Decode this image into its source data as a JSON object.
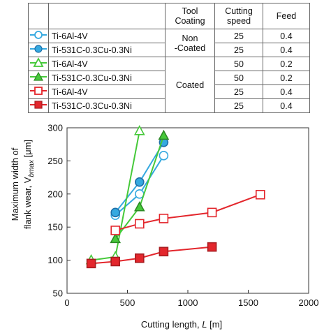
{
  "table": {
    "headers": {
      "coating_line1": "Tool",
      "coating_line2": "Coating",
      "speed_line1": "Cutting",
      "speed_line2": "speed",
      "feed": "Feed"
    },
    "rows": [
      {
        "name": "Ti-6Al-4V",
        "speed": "25",
        "feed": "0.4"
      },
      {
        "name": "Ti-531C-0.3Cu-0.3Ni",
        "speed": "25",
        "feed": "0.4"
      },
      {
        "name": "Ti-6Al-4V",
        "speed": "50",
        "feed": "0.2"
      },
      {
        "name": "Ti-531C-0.3Cu-0.3Ni",
        "speed": "50",
        "feed": "0.2"
      },
      {
        "name": "Ti-6Al-4V",
        "speed": "25",
        "feed": "0.4"
      },
      {
        "name": "Ti-531C-0.3Cu-0.3Ni",
        "speed": "25",
        "feed": "0.4"
      }
    ],
    "coating_groups": [
      {
        "line1": "Non",
        "line2": "-Coated"
      },
      {
        "line1": "Coated",
        "line2": ""
      }
    ]
  },
  "chart_data": {
    "type": "line",
    "xlabel": "Cutting length, L [m]",
    "ylabel_line1": "Maximum width of",
    "ylabel_line2": "flank wear, V",
    "ylabel_sub": "bmax",
    "ylabel_unit": " [μm]",
    "xlim": [
      0,
      2000
    ],
    "ylim": [
      50,
      300
    ],
    "xticks": [
      0,
      500,
      1000,
      1500,
      2000
    ],
    "yticks": [
      50,
      100,
      150,
      200,
      250,
      300
    ],
    "series": [
      {
        "name": "Ti-6Al-4V",
        "marker": "circle-open",
        "color": "#35a9e0",
        "x": [
          400,
          600,
          800
        ],
        "y": [
          168,
          200,
          258
        ]
      },
      {
        "name": "Ti-531C-0.3Cu-0.3Ni",
        "marker": "circle-filled",
        "color": "#35a9e0",
        "x": [
          400,
          600,
          800
        ],
        "y": [
          172,
          218,
          278
        ]
      },
      {
        "name": "Ti-6Al-4V",
        "marker": "triangle-open",
        "color": "#46c93a",
        "x": [
          200,
          400,
          600
        ],
        "y": [
          100,
          105,
          295
        ]
      },
      {
        "name": "Ti-531C-0.3Cu-0.3Ni",
        "marker": "triangle-filled",
        "color": "#46c93a",
        "x": [
          400,
          600,
          800
        ],
        "y": [
          132,
          180,
          288
        ]
      },
      {
        "name": "Ti-6Al-4V",
        "marker": "square-open",
        "color": "#e3262c",
        "x": [
          400,
          600,
          800,
          1200,
          1600
        ],
        "y": [
          145,
          155,
          163,
          172,
          199
        ]
      },
      {
        "name": "Ti-531C-0.3Cu-0.3Ni",
        "marker": "square-filled",
        "color": "#e3262c",
        "x": [
          200,
          400,
          600,
          800,
          1200
        ],
        "y": [
          95,
          98,
          103,
          113,
          120
        ]
      }
    ]
  }
}
